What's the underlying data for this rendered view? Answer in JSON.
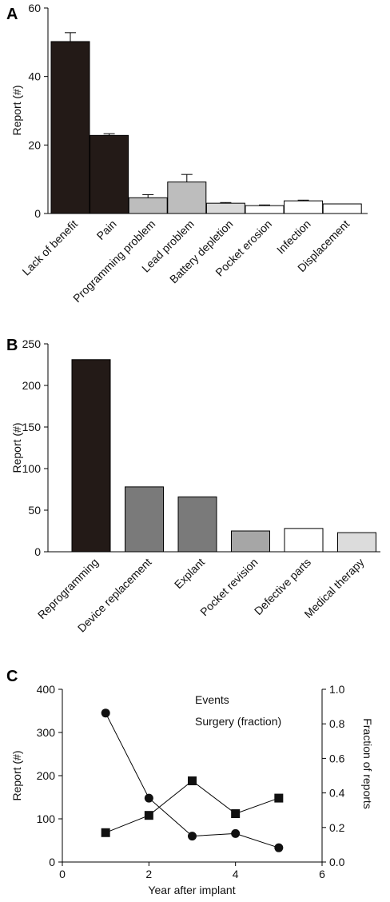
{
  "chart_data": [
    {
      "panel_label": "A",
      "type": "bar",
      "ylabel": "Report (#)",
      "ylim": [
        0,
        60
      ],
      "yticks": [
        0,
        20,
        40,
        60
      ],
      "categories": [
        "Lack of benefit",
        "Pain",
        "Programming problem",
        "Lead problem",
        "Battery depletion",
        "Pocket erosion",
        "Infection",
        "Displacement"
      ],
      "values": [
        50.2,
        22.8,
        4.6,
        9.2,
        3.0,
        2.3,
        3.7,
        2.8
      ],
      "errors": [
        2.6,
        0.5,
        0.9,
        2.2,
        0.2,
        0.2,
        0.2,
        0.0
      ],
      "colors": [
        "#231a17",
        "#231a17",
        "#bdbdbd",
        "#bdbdbd",
        "#d9d9d9",
        "#ffffff",
        "#ffffff",
        "#ffffff"
      ]
    },
    {
      "panel_label": "B",
      "type": "bar",
      "ylabel": "Report (#)",
      "ylim": [
        0,
        250
      ],
      "yticks": [
        0,
        50,
        100,
        150,
        200,
        250
      ],
      "categories": [
        "Reprogramming",
        "Device replacement",
        "Explant",
        "Pocket revision",
        "Defective parts",
        "Medical therapy"
      ],
      "values": [
        231,
        78,
        66,
        25,
        28,
        23
      ],
      "colors": [
        "#231a17",
        "#7a7a7a",
        "#7a7a7a",
        "#a6a6a6",
        "#ffffff",
        "#dcdcdc"
      ]
    },
    {
      "panel_label": "C",
      "type": "line",
      "xlabel": "Year after implant",
      "ylabel": "Report (#)",
      "y2label": "Fraction of reports",
      "xlim": [
        0,
        6
      ],
      "xticks": [
        0,
        2,
        4,
        6
      ],
      "ylim": [
        0,
        400
      ],
      "yticks": [
        0,
        100,
        200,
        300,
        400
      ],
      "y2lim": [
        0.0,
        1.0
      ],
      "y2ticks": [
        "0.0",
        "0.2",
        "0.4",
        "0.6",
        "0.8",
        "1.0"
      ],
      "legend_position": "top-right",
      "series": [
        {
          "name": "Events",
          "marker": "circle",
          "axis": "left",
          "x": [
            1,
            2,
            3,
            4,
            5
          ],
          "values": [
            345,
            148,
            60,
            66,
            33
          ]
        },
        {
          "name": "Surgery (fraction)",
          "marker": "square",
          "axis": "right",
          "x": [
            1,
            2,
            3,
            4,
            5
          ],
          "values": [
            0.17,
            0.27,
            0.47,
            0.28,
            0.37
          ]
        }
      ]
    }
  ]
}
